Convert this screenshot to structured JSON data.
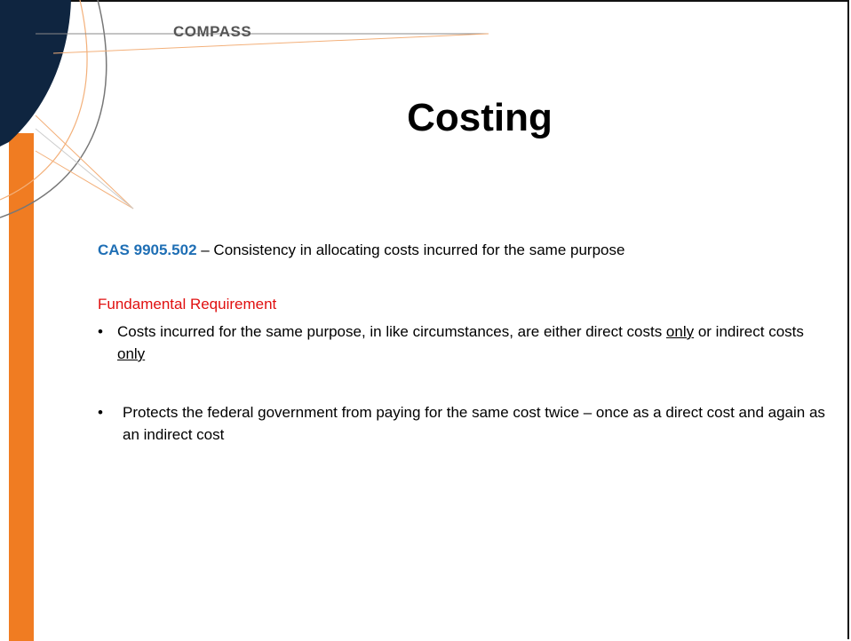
{
  "header": {
    "logo": "COMPASS",
    "title": "Costing"
  },
  "intro": {
    "code": "CAS 9905.502",
    "text": " – Consistency in allocating costs incurred for the same purpose"
  },
  "section": {
    "heading": "Fundamental Requirement",
    "bullets": [
      {
        "segments": [
          "Costs incurred for the same purpose, in like circumstances, are either direct costs ",
          "only",
          " or indirect costs ",
          "only"
        ]
      },
      {
        "segments": [
          "Protects the federal government from paying for the same cost twice – once as a direct cost and again as an indirect cost"
        ]
      }
    ]
  }
}
